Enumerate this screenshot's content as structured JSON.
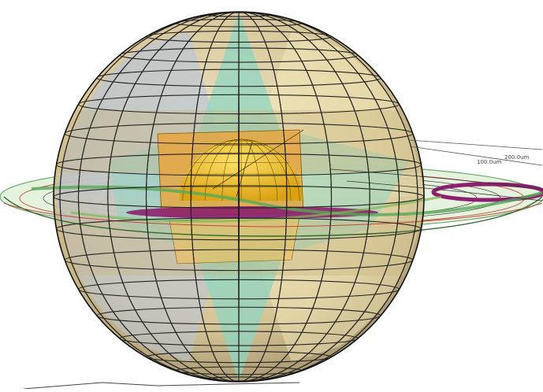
{
  "labels": {
    "ring_outer": "200.0um",
    "ring_inner": "100.0um"
  },
  "colors": {
    "background": "#ffffff",
    "sphere_tan": "#d9c690",
    "sphere_blue": "#b9c4d8",
    "cyan": "#8fd6c2",
    "gold": "#e8b923",
    "orange": "#f0a030",
    "magenta": "#8e1f6e",
    "ring_green": "#86c98a",
    "ring_red": "#c04a3a",
    "grid": "#222222"
  }
}
